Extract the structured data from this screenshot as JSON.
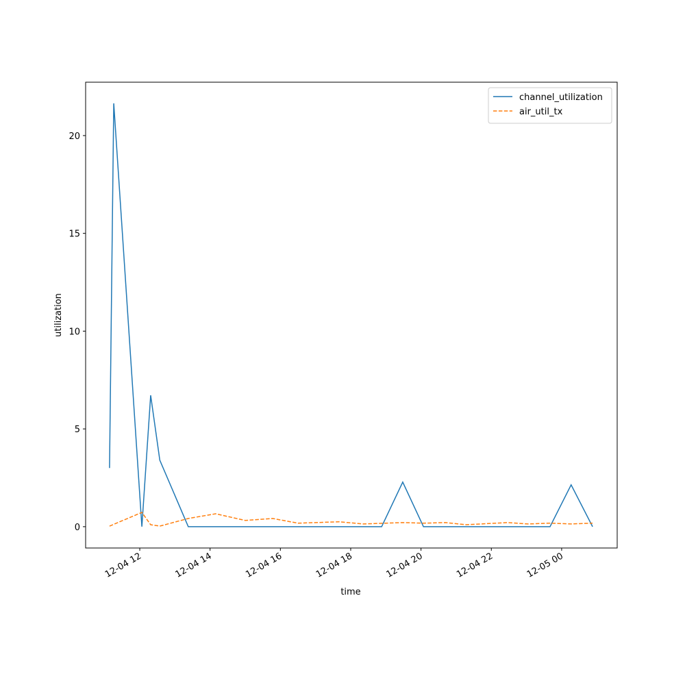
{
  "chart_data": {
    "type": "line",
    "xlabel": "time",
    "ylabel": "utilization",
    "xlim": [
      10.46,
      25.58
    ],
    "ylim": [
      -1.09,
      22.73
    ],
    "xticks": [
      {
        "value": 12,
        "label": "12-04 12"
      },
      {
        "value": 14,
        "label": "12-04 14"
      },
      {
        "value": 16,
        "label": "12-04 16"
      },
      {
        "value": 18,
        "label": "12-04 18"
      },
      {
        "value": 20,
        "label": "12-04 20"
      },
      {
        "value": 22,
        "label": "12-04 22"
      },
      {
        "value": 24,
        "label": "12-05 00"
      }
    ],
    "yticks": [
      0,
      5,
      10,
      15,
      20
    ],
    "grid": false,
    "legend": "upper right",
    "series": [
      {
        "name": "channel_utilization",
        "color": "#1f77b4",
        "linestyle": "solid",
        "x": [
          11.14,
          11.26,
          12.06,
          12.31,
          12.57,
          13.38,
          18.88,
          19.48,
          20.07,
          23.67,
          24.27,
          24.88
        ],
        "values": [
          3.0,
          21.65,
          0,
          6.72,
          3.4,
          0,
          0,
          2.28,
          0,
          0,
          2.14,
          0
        ]
      },
      {
        "name": "air_util_tx",
        "color": "#ff7f0e",
        "linestyle": "dashed",
        "x": [
          11.14,
          12.06,
          12.31,
          12.57,
          13.38,
          14.16,
          15.0,
          15.78,
          16.5,
          17.67,
          18.35,
          19.48,
          20.07,
          20.7,
          21.28,
          22.45,
          23.04,
          23.67,
          24.27,
          24.88
        ],
        "values": [
          0.03,
          0.73,
          0.1,
          0.03,
          0.42,
          0.66,
          0.32,
          0.42,
          0.18,
          0.25,
          0.14,
          0.21,
          0.18,
          0.21,
          0.1,
          0.21,
          0.14,
          0.18,
          0.14,
          0.18
        ]
      }
    ]
  }
}
